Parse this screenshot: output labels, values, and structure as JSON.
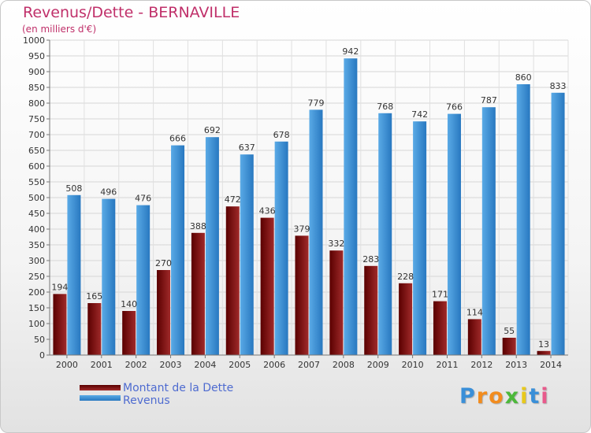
{
  "title": "Revenus/Dette - BERNAVILLE",
  "subtitle": "(en milliers d'€)",
  "colors": {
    "dette_dark": "#5a0000",
    "dette_light": "#a02a2a",
    "revenus_dark": "#2878c0",
    "revenus_light": "#5aaae6",
    "title": "#c0306a"
  },
  "chart_data": {
    "type": "bar",
    "categories": [
      "2000",
      "2001",
      "2002",
      "2003",
      "2004",
      "2005",
      "2006",
      "2007",
      "2008",
      "2009",
      "2010",
      "2011",
      "2012",
      "2013",
      "2014"
    ],
    "series": [
      {
        "name": "Montant de la Dette",
        "values": [
          194,
          165,
          140,
          270,
          388,
          472,
          436,
          379,
          332,
          283,
          228,
          171,
          114,
          55,
          13
        ]
      },
      {
        "name": "Revenus",
        "values": [
          508,
          496,
          476,
          666,
          692,
          637,
          678,
          779,
          942,
          768,
          742,
          766,
          787,
          860,
          833
        ]
      }
    ],
    "ylim": [
      0,
      1000
    ],
    "yticks": [
      0,
      50,
      100,
      150,
      200,
      250,
      300,
      350,
      400,
      450,
      500,
      550,
      600,
      650,
      700,
      750,
      800,
      850,
      900,
      950,
      1000
    ],
    "grid": true,
    "legend_position": "bottom-left"
  },
  "legend": {
    "items": [
      {
        "label": "Montant de la Dette"
      },
      {
        "label": "Revenus"
      }
    ]
  },
  "logo": {
    "text": "Proxiti",
    "letters": [
      {
        "ch": "P",
        "color": "#3a8fd8"
      },
      {
        "ch": "r",
        "color": "#f28c1e"
      },
      {
        "ch": "o",
        "color": "#f28c1e"
      },
      {
        "ch": "x",
        "color": "#4cb83a"
      },
      {
        "ch": "i",
        "color": "#e8c91c"
      },
      {
        "ch": "t",
        "color": "#3a8fd8"
      },
      {
        "ch": "i",
        "color": "#e85a8c"
      }
    ]
  }
}
